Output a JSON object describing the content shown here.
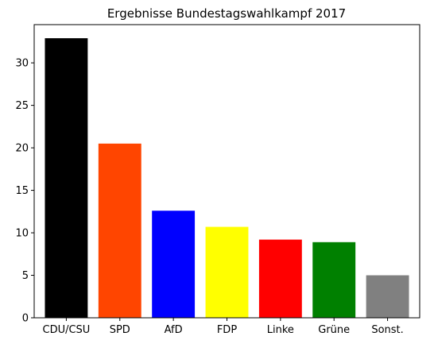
{
  "chart_data": {
    "type": "bar",
    "title": "Ergebnisse Bundestagswahlkampf 2017",
    "xlabel": "",
    "ylabel": "",
    "categories": [
      "CDU/CSU",
      "SPD",
      "AfD",
      "FDP",
      "Linke",
      "Grüne",
      "Sonst."
    ],
    "values": [
      32.9,
      20.5,
      12.6,
      10.7,
      9.2,
      8.9,
      5.0
    ],
    "colors": [
      "#000000",
      "#ff4500",
      "#0000ff",
      "#ffff00",
      "#ff0000",
      "#008000",
      "#808080"
    ],
    "ylim": [
      0,
      34.5
    ],
    "yticks": [
      0,
      5,
      10,
      15,
      20,
      25,
      30
    ],
    "grid": false
  }
}
